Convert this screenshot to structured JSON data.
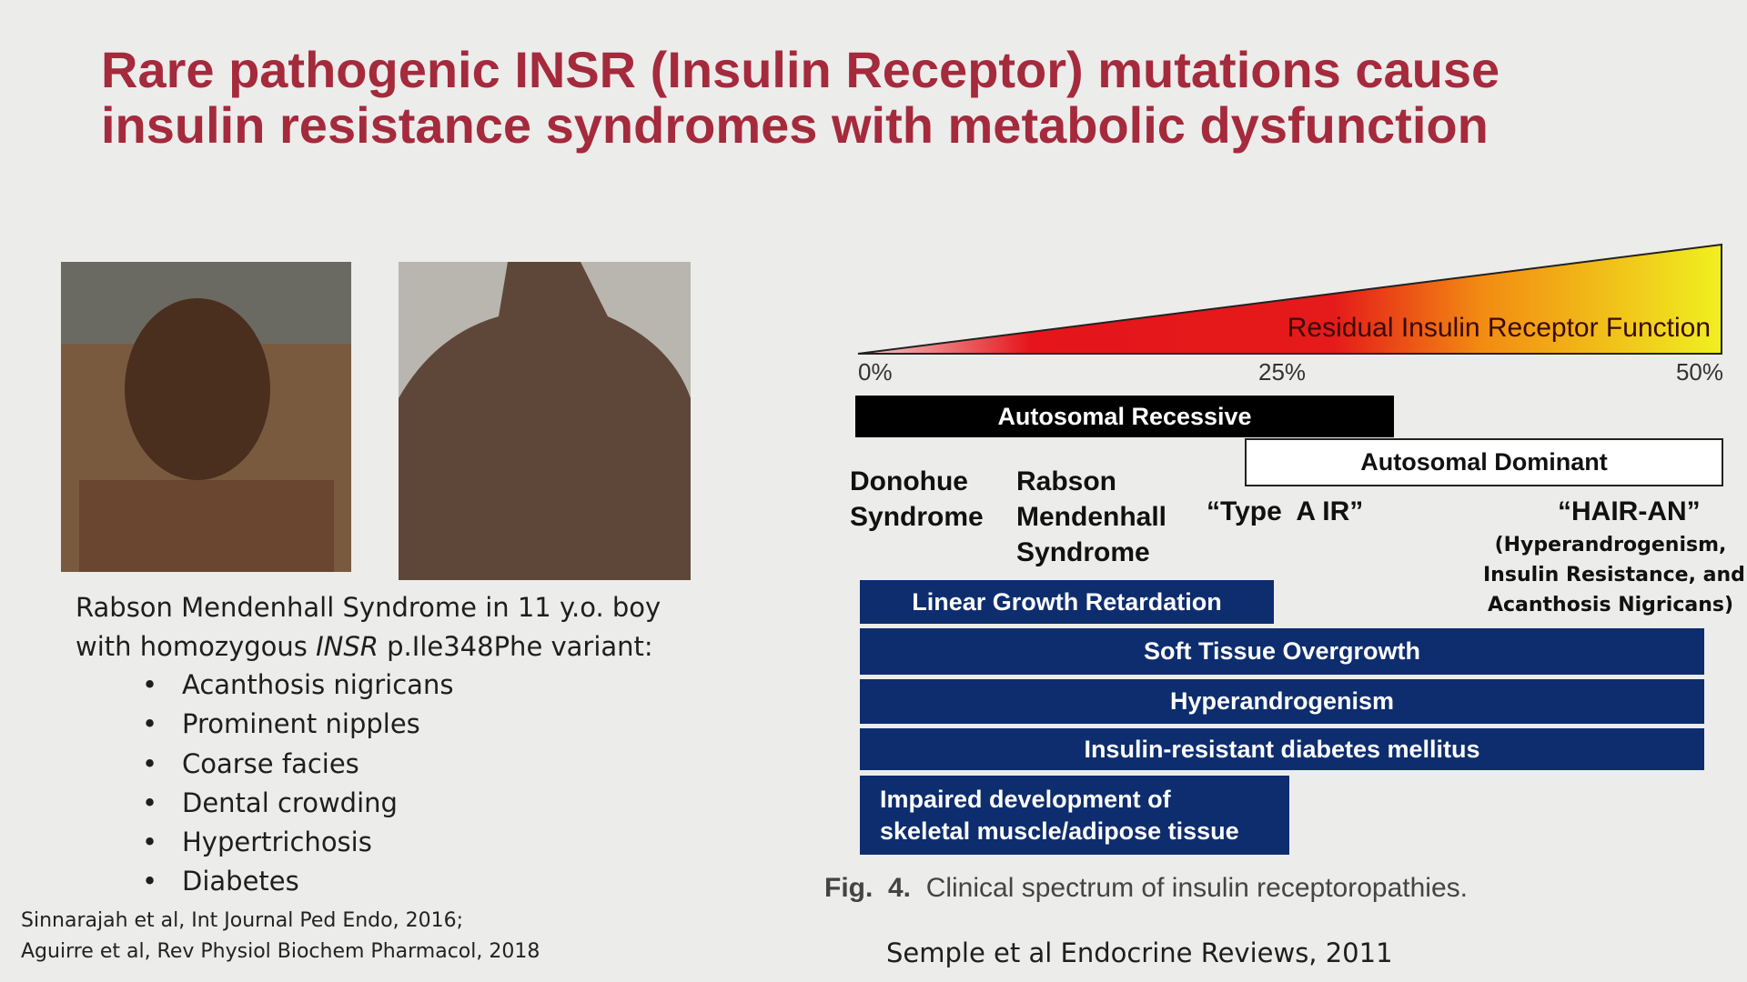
{
  "header": {
    "title_lines": [
      "Rare pathogenic INSR (Insulin Receptor) mutations cause",
      "insulin resistance syndromes with metabolic dysfunction"
    ]
  },
  "case": {
    "caption_line1": "Rabson Mendenhall Syndrome in 11 y.o. boy",
    "caption_line2": [
      "with homozygous ",
      "INSR",
      " p.Ile348Phe variant:"
    ],
    "bullets": [
      "Acanthosis nigricans",
      "Prominent nipples",
      "Coarse facies",
      "Dental crowding",
      "Hypertrichosis",
      "Diabetes"
    ],
    "references": [
      "Sinnarajah et al, Int Journal Ped Endo, 2016;",
      "Aguirre et al, Rev Physiol Biochem Pharmacol, 2018"
    ]
  },
  "figure": {
    "gradient_label": "Residual Insulin Receptor Function",
    "scale_labels": [
      "0%",
      "25%",
      "50%"
    ],
    "inheritance": [
      "Autosomal Recessive",
      "Autosomal Dominant"
    ],
    "syndromes": {
      "donohue": [
        "Donohue",
        "Syndrome"
      ],
      "rabson": [
        "Rabson",
        "Mendenhall",
        "Syndrome"
      ],
      "type_a": "“Type  A IR”",
      "hair_an": "“HAIR-AN”",
      "hair_an_detail": [
        "(Hyperandrogenism,",
        "Insulin Resistance, and",
        "Acanthosis Nigricans)"
      ]
    },
    "features": [
      "Linear Growth Retardation",
      "Soft Tissue Overgrowth",
      "Hyperandrogenism",
      "Insulin-resistant diabetes mellitus"
    ],
    "feature_last": [
      "Impaired development  of",
      "skeletal muscle/adipose tissue"
    ],
    "fig_label": "Fig.  4.",
    "fig_caption": "Clinical spectrum of insulin receptoropathies.",
    "source": "Semple et al Endocrine Reviews, 2011"
  }
}
